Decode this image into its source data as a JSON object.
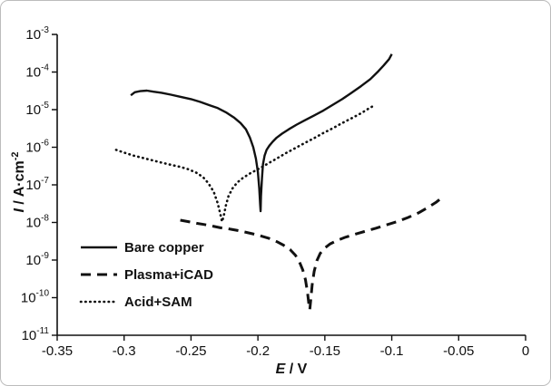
{
  "figure": {
    "background": "#ffffff",
    "border_color": "#bcbcbc"
  },
  "chart_data": {
    "type": "line",
    "title": "",
    "xlabel_parts": {
      "var": "E",
      "sep": " / V"
    },
    "ylabel_parts": {
      "var": "I",
      "sep": " / A·cm",
      "exp": "-2"
    },
    "line_color": "#111111",
    "grid": false,
    "x_axis": {
      "min": -0.35,
      "max": 0,
      "tick_values": [
        -0.35,
        -0.3,
        -0.25,
        -0.2,
        -0.15,
        -0.1,
        -0.05,
        0
      ],
      "tick_labels": [
        "-0.35",
        "-0.3",
        "-0.25",
        "-0.2",
        "-0.15",
        "-0.1",
        "-0.05",
        "0"
      ]
    },
    "y_axis": {
      "scale": "log",
      "min_exponent": -11,
      "max_exponent": -3,
      "tick_base": "10",
      "tick_exponents": [
        -3,
        -4,
        -5,
        -6,
        -7,
        -8,
        -9,
        -10,
        -11
      ]
    },
    "legend": {
      "position": "lower-left"
    },
    "series": [
      {
        "name": "Bare copper",
        "style": "solid",
        "points": [
          [
            -0.295,
            2.4e-05
          ],
          [
            -0.292,
            2.9e-05
          ],
          [
            -0.288,
            3.1e-05
          ],
          [
            -0.283,
            3.2e-05
          ],
          [
            -0.278,
            3e-05
          ],
          [
            -0.272,
            2.8e-05
          ],
          [
            -0.265,
            2.5e-05
          ],
          [
            -0.258,
            2.2e-05
          ],
          [
            -0.25,
            1.9e-05
          ],
          [
            -0.243,
            1.6e-05
          ],
          [
            -0.236,
            1.3e-05
          ],
          [
            -0.23,
            1.1e-05
          ],
          [
            -0.224,
            8.5e-06
          ],
          [
            -0.218,
            6.2e-06
          ],
          [
            -0.213,
            4.4e-06
          ],
          [
            -0.209,
            3e-06
          ],
          [
            -0.206,
            1.8e-06
          ],
          [
            -0.2035,
            1e-06
          ],
          [
            -0.2015,
            5e-07
          ],
          [
            -0.2,
            2.2e-07
          ],
          [
            -0.199,
            8e-08
          ],
          [
            -0.1983,
            3e-08
          ],
          [
            -0.198,
            2e-08
          ],
          [
            -0.1977,
            5e-08
          ],
          [
            -0.197,
            1.5e-07
          ],
          [
            -0.1962,
            3.5e-07
          ],
          [
            -0.195,
            6e-07
          ],
          [
            -0.1935,
            8.5e-07
          ],
          [
            -0.1915,
            1.1e-06
          ],
          [
            -0.189,
            1.4e-06
          ],
          [
            -0.186,
            1.8e-06
          ],
          [
            -0.182,
            2.3e-06
          ],
          [
            -0.177,
            3e-06
          ],
          [
            -0.171,
            4e-06
          ],
          [
            -0.165,
            5.2e-06
          ],
          [
            -0.158,
            7e-06
          ],
          [
            -0.151,
            9.5e-06
          ],
          [
            -0.144,
            1.35e-05
          ],
          [
            -0.137,
            1.9e-05
          ],
          [
            -0.13,
            2.8e-05
          ],
          [
            -0.123,
            4.2e-05
          ],
          [
            -0.116,
            6.5e-05
          ],
          [
            -0.11,
            0.000105
          ],
          [
            -0.106,
            0.00015
          ],
          [
            -0.102,
            0.00022
          ],
          [
            -0.1,
            0.0003
          ]
        ]
      },
      {
        "name": "Plasma+iCAD",
        "style": "dashed",
        "points": [
          [
            -0.258,
            1.15e-08
          ],
          [
            -0.252,
            1.05e-08
          ],
          [
            -0.246,
            9.5e-09
          ],
          [
            -0.24,
            8.8e-09
          ],
          [
            -0.234,
            8e-09
          ],
          [
            -0.228,
            7.2e-09
          ],
          [
            -0.222,
            6.8e-09
          ],
          [
            -0.216,
            6.2e-09
          ],
          [
            -0.21,
            5.6e-09
          ],
          [
            -0.204,
            5e-09
          ],
          [
            -0.198,
            4.4e-09
          ],
          [
            -0.192,
            3.8e-09
          ],
          [
            -0.186,
            3.1e-09
          ],
          [
            -0.181,
            2.5e-09
          ],
          [
            -0.176,
            1.9e-09
          ],
          [
            -0.172,
            1.35e-09
          ],
          [
            -0.169,
            9e-10
          ],
          [
            -0.1665,
            5.5e-10
          ],
          [
            -0.1645,
            3e-10
          ],
          [
            -0.163,
            1.4e-10
          ],
          [
            -0.1618,
            6e-11
          ],
          [
            -0.1612,
            4.8e-11
          ],
          [
            -0.1605,
            9e-11
          ],
          [
            -0.1595,
            2.2e-10
          ],
          [
            -0.158,
            5e-10
          ],
          [
            -0.156,
            9.5e-10
          ],
          [
            -0.1535,
            1.5e-09
          ],
          [
            -0.15,
            2.1e-09
          ],
          [
            -0.146,
            2.7e-09
          ],
          [
            -0.141,
            3.3e-09
          ],
          [
            -0.135,
            4e-09
          ],
          [
            -0.128,
            4.8e-09
          ],
          [
            -0.12,
            5.8e-09
          ],
          [
            -0.112,
            7e-09
          ],
          [
            -0.104,
            8.6e-09
          ],
          [
            -0.096,
            1.05e-08
          ],
          [
            -0.088,
            1.35e-08
          ],
          [
            -0.08,
            1.8e-08
          ],
          [
            -0.073,
            2.5e-08
          ],
          [
            -0.067,
            3.4e-08
          ],
          [
            -0.062,
            4.7e-08
          ]
        ]
      },
      {
        "name": "Acid+SAM",
        "style": "dotted",
        "points": [
          [
            -0.306,
            8.5e-07
          ],
          [
            -0.3,
            7.2e-07
          ],
          [
            -0.293,
            6e-07
          ],
          [
            -0.286,
            5.2e-07
          ],
          [
            -0.279,
            4.5e-07
          ],
          [
            -0.272,
            3.9e-07
          ],
          [
            -0.265,
            3.4e-07
          ],
          [
            -0.258,
            3e-07
          ],
          [
            -0.252,
            2.6e-07
          ],
          [
            -0.246,
            2.1e-07
          ],
          [
            -0.241,
            1.6e-07
          ],
          [
            -0.237,
            1.1e-07
          ],
          [
            -0.233,
            6.5e-08
          ],
          [
            -0.23,
            3.2e-08
          ],
          [
            -0.228,
            1.6e-08
          ],
          [
            -0.2268,
            1.05e-08
          ],
          [
            -0.2255,
            1.5e-08
          ],
          [
            -0.224,
            2.8e-08
          ],
          [
            -0.222,
            5e-08
          ],
          [
            -0.219,
            8e-08
          ],
          [
            -0.2155,
            1.15e-07
          ],
          [
            -0.211,
            1.55e-07
          ],
          [
            -0.206,
            2e-07
          ],
          [
            -0.2,
            2.6e-07
          ],
          [
            -0.193,
            3.6e-07
          ],
          [
            -0.186,
            5e-07
          ],
          [
            -0.179,
            7e-07
          ],
          [
            -0.172,
            9.5e-07
          ],
          [
            -0.165,
            1.3e-06
          ],
          [
            -0.158,
            1.75e-06
          ],
          [
            -0.151,
            2.4e-06
          ],
          [
            -0.144,
            3.2e-06
          ],
          [
            -0.137,
            4.4e-06
          ],
          [
            -0.13,
            5.9e-06
          ],
          [
            -0.123,
            8e-06
          ],
          [
            -0.117,
            1.08e-05
          ],
          [
            -0.113,
            1.3e-05
          ]
        ]
      }
    ]
  }
}
